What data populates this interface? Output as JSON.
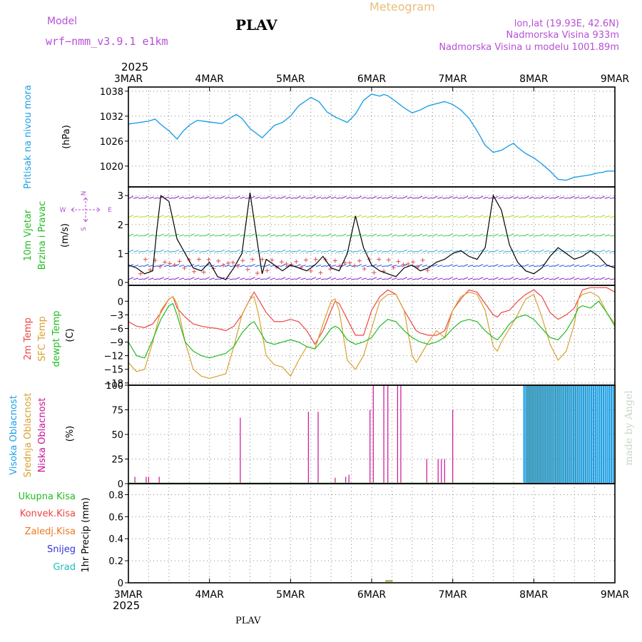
{
  "colors": {
    "model": "#b64fd6",
    "meteogram": "#e8c07a",
    "pressure": "#1ea0e6",
    "wind_label": "#22bb22",
    "wind_speed": "#000000",
    "wind_gust_marks": "#e05050",
    "t2m": "#ee4444",
    "sfc": "#d9a030",
    "dewpt": "#22bb22",
    "high_cloud": "#1ea0e6",
    "mid_cloud": "#d9a030",
    "low_cloud": "#cc1199",
    "total_precip": "#22bb22",
    "conv_precip": "#ee4444",
    "frozen_precip": "#ee7722",
    "snow": "#3333dd",
    "hail": "#22bbbb",
    "compass": "#b64fd6",
    "watermark": "#c8d8c8",
    "grid": "#888888"
  },
  "header": {
    "model_label": "Model",
    "model_name": "wrf−nmm_v3.9.1  e1km",
    "station": "PLAV",
    "meteogram": "Meteogram",
    "lonlat": "lon,lat (19.93E, 42.6N)",
    "elevation": "Nadmorska Visina 933m",
    "model_elevation": "Nadmorska Visina u modelu 1001.89m"
  },
  "footer_station": "PLAV",
  "watermark": "made by Angel",
  "time_axis": {
    "year_top": "2025",
    "year_bottom": "2025",
    "ticks": [
      "3MAR",
      "4MAR",
      "5MAR",
      "6MAR",
      "7MAR",
      "8MAR",
      "9MAR"
    ]
  },
  "compass": {
    "n": "N",
    "s": "S",
    "e": "E",
    "w": "W"
  },
  "panels": {
    "pressure": {
      "label": "Pritisak na nivou mora",
      "unit": "(hPa)",
      "ticks": [
        "1038",
        "1032",
        "1026",
        "1020"
      ]
    },
    "wind": {
      "label_1": "10m Vjetar",
      "label_2": "Brzina i Pravac",
      "unit": "(m/s)",
      "ticks": [
        "3",
        "2",
        "1",
        "0"
      ]
    },
    "temp": {
      "label_t2m": "2m Temp",
      "label_sfc": "SFC Temp",
      "label_dew": "dewpt Temp",
      "unit": "(C)",
      "ticks": [
        "0",
        "−3",
        "−6",
        "−9",
        "−12",
        "−15",
        "−18"
      ]
    },
    "cloud": {
      "label_high": "Visoka Oblacnost",
      "label_mid": "Srednja Oblacnost",
      "label_low": "Niska Oblacnost",
      "unit": "(%)",
      "ticks": [
        "100",
        "75",
        "50",
        "25",
        "0"
      ]
    },
    "precip": {
      "legend": [
        "Ukupna Kisa",
        "Konvek.Kisa",
        "Zaledj.Kisa",
        "Snijeg",
        "Grad"
      ],
      "unit": "1hr Precip (mm)",
      "ticks": [
        "0.8",
        "0.6",
        "0.4",
        "0.2",
        "0"
      ]
    }
  },
  "chart_data": [
    {
      "type": "line",
      "name": "Pritisak na nivou mora",
      "ylabel": "(hPa)",
      "ylim": [
        1015,
        1039
      ],
      "x_unit": "days from 3MAR 00",
      "x": [
        0,
        0.25,
        0.33,
        0.4,
        0.5,
        0.6,
        0.67,
        0.75,
        0.85,
        1.0,
        1.15,
        1.25,
        1.33,
        1.4,
        1.5,
        1.65,
        1.8,
        1.9,
        2.0,
        2.1,
        2.25,
        2.35,
        2.45,
        2.55,
        2.7,
        2.8,
        2.9,
        3.0,
        3.1,
        3.15,
        3.2,
        3.3,
        3.4,
        3.5,
        3.6,
        3.7,
        3.8,
        3.9,
        4.0,
        4.1,
        4.2,
        4.3,
        4.4,
        4.5,
        4.6,
        4.7,
        4.75,
        4.8,
        4.9,
        5.0,
        5.1,
        5.2,
        5.3,
        5.4,
        5.5,
        5.6,
        5.7,
        5.8,
        5.85,
        5.9,
        6.0
      ],
      "y": [
        1030.1,
        1030.8,
        1031.3,
        1030.0,
        1028.5,
        1026.5,
        1028.3,
        1029.8,
        1031.0,
        1030.6,
        1030.2,
        1031.5,
        1032.4,
        1031.5,
        1029.0,
        1026.8,
        1029.8,
        1030.5,
        1032.0,
        1034.5,
        1036.5,
        1035.5,
        1033.0,
        1031.8,
        1030.5,
        1032.5,
        1035.8,
        1037.3,
        1036.8,
        1037.2,
        1036.9,
        1035.5,
        1034.0,
        1032.8,
        1033.5,
        1034.5,
        1035.0,
        1035.5,
        1034.8,
        1033.5,
        1031.5,
        1028.5,
        1025.0,
        1023.3,
        1023.8,
        1025.0,
        1025.5,
        1024.5,
        1023.0,
        1022.0,
        1020.5,
        1018.8,
        1016.8,
        1016.6,
        1017.3,
        1017.6,
        1017.9,
        1018.4,
        1018.5,
        1018.8,
        1018.8
      ]
    },
    {
      "type": "line",
      "name": "10m Vjetar Brzina",
      "ylabel": "(m/s)",
      "ylim": [
        -0.1,
        3.3
      ],
      "x": [
        0,
        0.1,
        0.2,
        0.3,
        0.35,
        0.4,
        0.5,
        0.6,
        0.7,
        0.8,
        0.9,
        1.0,
        1.1,
        1.2,
        1.3,
        1.4,
        1.5,
        1.6,
        1.65,
        1.7,
        1.8,
        1.9,
        2.0,
        2.1,
        2.2,
        2.3,
        2.4,
        2.5,
        2.6,
        2.7,
        2.8,
        2.9,
        3.0,
        3.1,
        3.2,
        3.3,
        3.4,
        3.5,
        3.6,
        3.7,
        3.8,
        3.9,
        4.0,
        4.1,
        4.2,
        4.3,
        4.4,
        4.5,
        4.6,
        4.7,
        4.8,
        4.9,
        5.0,
        5.1,
        5.2,
        5.3,
        5.4,
        5.5,
        5.6,
        5.7,
        5.8,
        5.9,
        6.0
      ],
      "y": [
        0.6,
        0.5,
        0.3,
        0.4,
        1.8,
        3.0,
        2.8,
        1.5,
        1.0,
        0.5,
        0.4,
        0.7,
        0.2,
        0.1,
        0.5,
        1.0,
        3.1,
        1.2,
        0.3,
        0.8,
        0.6,
        0.4,
        0.6,
        0.5,
        0.4,
        0.6,
        0.9,
        0.5,
        0.4,
        1.0,
        2.3,
        1.2,
        0.6,
        0.4,
        0.3,
        0.2,
        0.5,
        0.6,
        0.4,
        0.5,
        0.7,
        0.8,
        1.0,
        1.1,
        0.9,
        0.8,
        1.2,
        3.0,
        2.5,
        1.3,
        0.7,
        0.4,
        0.3,
        0.5,
        0.9,
        1.2,
        1.0,
        0.8,
        0.9,
        1.1,
        0.9,
        0.6,
        0.5
      ]
    },
    {
      "type": "line",
      "name": "Temperatura",
      "ylabel": "(C)",
      "ylim": [
        -18.5,
        3.5
      ],
      "x": [
        0,
        0.1,
        0.2,
        0.3,
        0.4,
        0.5,
        0.55,
        0.6,
        0.7,
        0.8,
        0.9,
        1.0,
        1.1,
        1.2,
        1.3,
        1.4,
        1.5,
        1.55,
        1.6,
        1.7,
        1.8,
        1.9,
        2.0,
        2.1,
        2.2,
        2.3,
        2.4,
        2.5,
        2.55,
        2.6,
        2.7,
        2.8,
        2.9,
        3.0,
        3.1,
        3.2,
        3.3,
        3.4,
        3.5,
        3.55,
        3.6,
        3.7,
        3.8,
        3.9,
        4.0,
        4.1,
        4.2,
        4.3,
        4.4,
        4.5,
        4.55,
        4.6,
        4.7,
        4.8,
        4.9,
        5.0,
        5.1,
        5.2,
        5.3,
        5.4,
        5.5,
        5.55,
        5.6,
        5.7,
        5.8,
        5.9,
        6.0
      ],
      "series": [
        {
          "name": "2m Temp",
          "y": [
            -4.5,
            -5.5,
            -5.8,
            -5.0,
            -2.5,
            0.5,
            1.0,
            -1.5,
            -3.5,
            -5.0,
            -5.5,
            -5.8,
            -6.0,
            -6.5,
            -5.5,
            -3.0,
            0.5,
            2.0,
            0.5,
            -2.5,
            -4.5,
            -4.5,
            -4.0,
            -4.5,
            -6.5,
            -9.5,
            -6.5,
            -2.0,
            0.0,
            -0.5,
            -4.0,
            -7.5,
            -7.5,
            -2.0,
            1.0,
            2.5,
            1.5,
            -2.0,
            -5.0,
            -6.5,
            -7.0,
            -7.5,
            -7.5,
            -6.5,
            -2.0,
            0.5,
            2.5,
            2.0,
            -0.5,
            -3.0,
            -3.5,
            -2.5,
            -2.0,
            0.0,
            1.5,
            2.5,
            1.0,
            -2.5,
            -4.0,
            -3.0,
            -1.5,
            0.5,
            2.5,
            3.0,
            3.0,
            3.0,
            2.0
          ]
        },
        {
          "name": "SFC Temp",
          "y": [
            -13.5,
            -15.5,
            -15.0,
            -9.0,
            -2.0,
            0.5,
            1.0,
            -0.5,
            -9.0,
            -15.0,
            -16.5,
            -17.0,
            -16.5,
            -16.0,
            -10.0,
            -3.0,
            0.5,
            1.0,
            -2.5,
            -12.0,
            -14.0,
            -14.5,
            -16.5,
            -13.0,
            -10.0,
            -10.5,
            -5.0,
            0.0,
            0.5,
            -2.0,
            -13.0,
            -15.0,
            -12.0,
            -6.0,
            0.0,
            1.5,
            1.5,
            -2.0,
            -12.0,
            -13.5,
            -12.0,
            -9.0,
            -6.5,
            -8.0,
            -2.0,
            1.0,
            2.0,
            1.5,
            -2.0,
            -10.0,
            -11.0,
            -9.0,
            -6.0,
            -3.0,
            0.5,
            1.5,
            -3.5,
            -9.5,
            -13.0,
            -11.0,
            -5.0,
            0.5,
            1.5,
            2.0,
            1.0,
            -2.5,
            -5.0
          ]
        },
        {
          "name": "dewpt Temp",
          "y": [
            -9.0,
            -12.0,
            -12.5,
            -8.5,
            -4.0,
            -1.0,
            -0.5,
            -3.0,
            -9.0,
            -11.0,
            -12.0,
            -12.5,
            -12.0,
            -11.5,
            -10.0,
            -7.0,
            -5.0,
            -4.5,
            -6.0,
            -9.0,
            -9.5,
            -9.0,
            -8.5,
            -9.0,
            -10.0,
            -10.5,
            -8.5,
            -6.0,
            -5.5,
            -6.0,
            -8.5,
            -9.5,
            -9.0,
            -8.0,
            -5.5,
            -4.0,
            -4.5,
            -6.5,
            -8.0,
            -8.5,
            -9.0,
            -9.5,
            -9.0,
            -8.0,
            -6.0,
            -4.5,
            -4.0,
            -4.5,
            -6.5,
            -8.0,
            -8.5,
            -7.5,
            -5.0,
            -3.5,
            -3.0,
            -4.0,
            -6.0,
            -8.0,
            -8.5,
            -6.5,
            -3.5,
            -1.5,
            -1.0,
            -1.5,
            0.0,
            -2.5,
            -5.5
          ]
        }
      ]
    },
    {
      "type": "bar",
      "name": "Oblacnost",
      "ylabel": "(%)",
      "ylim": [
        0,
        100
      ],
      "series": [
        {
          "name": "Niska Oblacnost",
          "x": [
            0.08,
            0.22,
            0.25,
            0.38,
            1.38,
            2.22,
            2.34,
            2.55,
            2.68,
            2.72,
            2.98,
            3.02,
            3.15,
            3.2,
            3.32,
            3.36,
            3.68,
            3.82,
            3.86,
            3.9,
            4.0
          ],
          "y": [
            7,
            7,
            7,
            7,
            67,
            73,
            73,
            6,
            7,
            9,
            75,
            100,
            100,
            100,
            100,
            100,
            25,
            25,
            25,
            25,
            75
          ]
        },
        {
          "name": "Visoka Oblacnost",
          "x_range": [
            4.87,
            5.97
          ],
          "bar_count": 46,
          "y": 100
        },
        {
          "name": "Srednja Oblacnost",
          "x_range": [
            4.89,
            5.98
          ],
          "bar_count": 46,
          "y": 100
        }
      ]
    },
    {
      "type": "bar",
      "name": "1hr Precip",
      "ylabel": "1hr Precip (mm)",
      "ylim": [
        0,
        0.9
      ],
      "series": [
        {
          "name": "Ukupna Kisa",
          "x": [
            3.17,
            3.2,
            3.24
          ],
          "y": [
            0.01,
            0.01,
            0.01
          ]
        },
        {
          "name": "Zaledj.Kisa",
          "x": [
            3.18,
            3.22
          ],
          "y": [
            0.01,
            0.01
          ]
        }
      ]
    }
  ]
}
